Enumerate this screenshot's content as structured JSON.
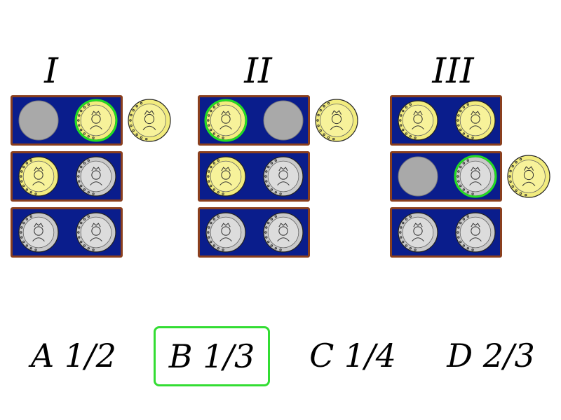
{
  "boxes": [
    {
      "label": "I",
      "rows": [
        [
          "empty",
          "gold"
        ],
        [
          "gold",
          "silver"
        ],
        [
          "silver",
          "silver"
        ]
      ],
      "extra_row": 0,
      "highlight": [
        0,
        1
      ]
    },
    {
      "label": "II",
      "rows": [
        [
          "gold",
          "empty"
        ],
        [
          "gold",
          "silver"
        ],
        [
          "silver",
          "silver"
        ]
      ],
      "extra_row": 0,
      "highlight": [
        0,
        0
      ]
    },
    {
      "label": "III",
      "rows": [
        [
          "gold",
          "gold"
        ],
        [
          "empty",
          "silver"
        ],
        [
          "silver",
          "silver"
        ]
      ],
      "extra_row": 1,
      "highlight": [
        1,
        1
      ]
    }
  ],
  "answers": [
    {
      "letter": "A",
      "value": "1/2",
      "selected": false
    },
    {
      "letter": "B",
      "value": "1/3",
      "selected": true
    },
    {
      "letter": "C",
      "value": "1/4",
      "selected": false
    },
    {
      "letter": "D",
      "value": "2/3",
      "selected": false
    }
  ],
  "colors": {
    "highlight": "#22dd22",
    "box": "#0a1d8c",
    "frame": "#8a3f1e",
    "gold": "#f2ec7e",
    "silver": "#c9c9c9"
  },
  "icons": {
    "gold": "gold-coin-icon",
    "silver": "silver-coin-icon",
    "empty": "empty-slot-icon"
  }
}
